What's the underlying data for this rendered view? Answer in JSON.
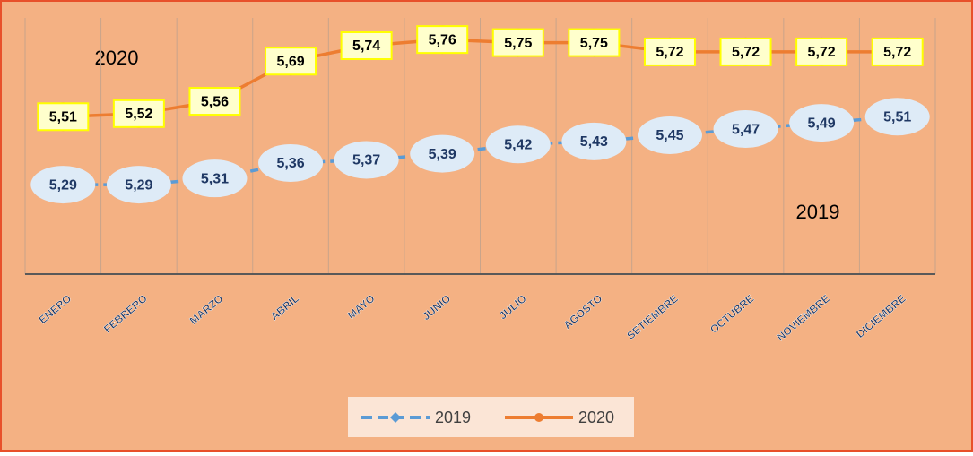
{
  "chart_data": {
    "type": "line",
    "categories": [
      "ENERO",
      "FEBRERO",
      "MARZO",
      "ABRIL",
      "MAYO",
      "JUNIO",
      "JULIO",
      "AGOSTO",
      "SETIEMBRE",
      "OCTUBRE",
      "NOVIEMBRE",
      "DICIEMBRE"
    ],
    "series": [
      {
        "name": "2019",
        "color": "#5b9bd5",
        "dashed": true,
        "values": [
          5.29,
          5.29,
          5.31,
          5.36,
          5.37,
          5.39,
          5.42,
          5.43,
          5.45,
          5.47,
          5.49,
          5.51
        ],
        "value_labels": [
          "5,29",
          "5,29",
          "5,31",
          "5,36",
          "5,37",
          "5,39",
          "5,42",
          "5,43",
          "5,45",
          "5,47",
          "5,49",
          "5,51"
        ]
      },
      {
        "name": "2020",
        "color": "#ed7d31",
        "dashed": false,
        "values": [
          5.51,
          5.52,
          5.56,
          5.69,
          5.74,
          5.76,
          5.75,
          5.75,
          5.72,
          5.72,
          5.72,
          5.72
        ],
        "value_labels": [
          "5,51",
          "5,52",
          "5,56",
          "5,69",
          "5,74",
          "5,76",
          "5,75",
          "5,75",
          "5,72",
          "5,72",
          "5,72",
          "5,72"
        ]
      }
    ],
    "annotations": [
      "2020",
      "2019"
    ],
    "ylim": [
      5.0,
      5.83
    ],
    "legend": "bottom"
  }
}
